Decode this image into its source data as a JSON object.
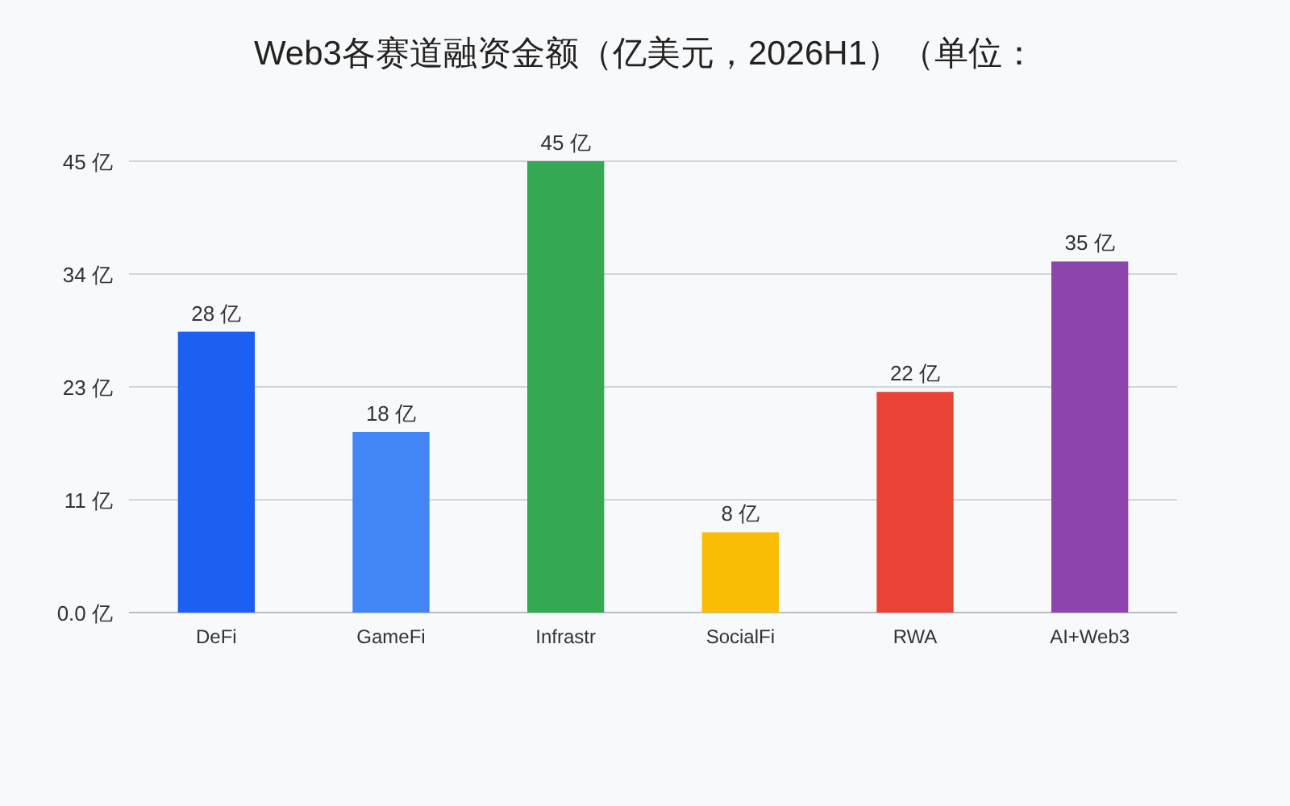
{
  "chart_data": {
    "type": "bar",
    "title": "Web3各赛道融资金额（亿美元，2026H1）（单位：",
    "categories": [
      "DeFi",
      "GameFi",
      "Infrastr",
      "SocialFi",
      "RWA",
      "AI+Web3"
    ],
    "values": [
      28,
      18,
      45,
      8,
      22,
      35
    ],
    "colors": [
      "#1c60f2",
      "#4286f5",
      "#34a853",
      "#fbbc05",
      "#ea4335",
      "#8e44ad"
    ],
    "value_labels": [
      "28 亿",
      "18 亿",
      "45 亿",
      "8 亿",
      "22 亿",
      "35 亿"
    ],
    "ylim": [
      0,
      45
    ],
    "yticks": [
      {
        "value": 0,
        "label": "0.0 亿"
      },
      {
        "value": 11.25,
        "label": "11 亿"
      },
      {
        "value": 22.5,
        "label": "23 亿"
      },
      {
        "value": 33.75,
        "label": "34 亿"
      },
      {
        "value": 45,
        "label": "45 亿"
      }
    ],
    "grid": "y"
  }
}
